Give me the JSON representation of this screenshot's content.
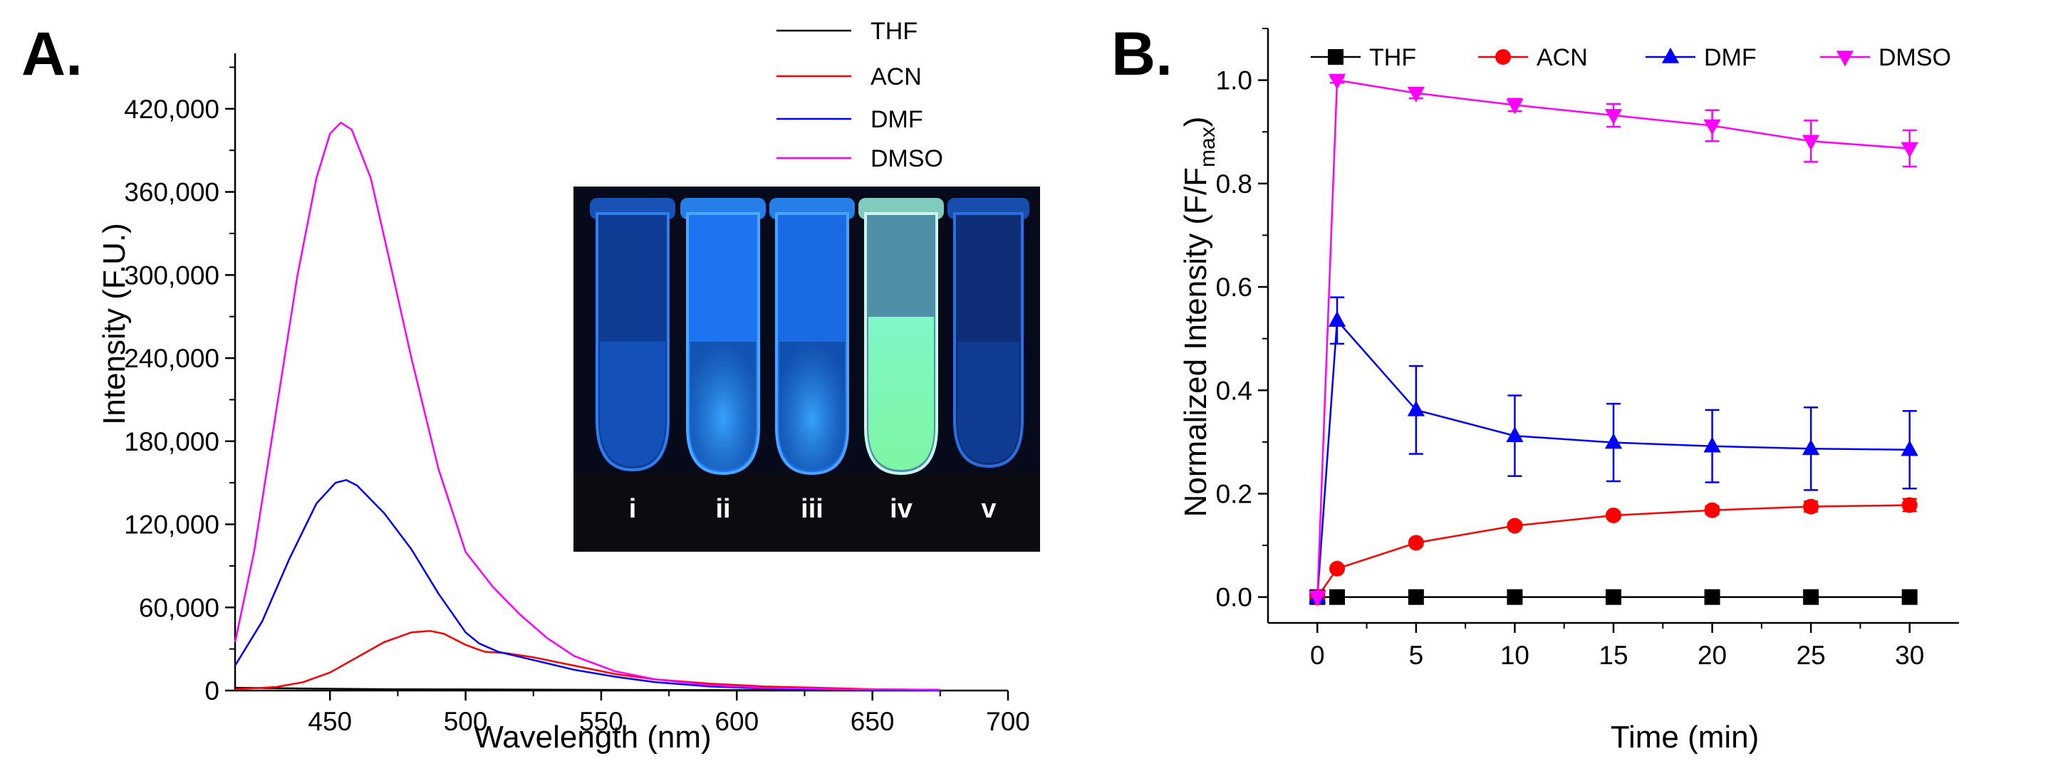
{
  "chart_data": [
    {
      "panel": "A.",
      "type": "line",
      "xlabel": "Wavelength (nm)",
      "ylabel": "Intensity (F.U.)",
      "xlim": [
        415,
        700
      ],
      "ylim": [
        0,
        460000
      ],
      "xticks": [
        450,
        500,
        550,
        600,
        650,
        700
      ],
      "xtick_labels": [
        "450",
        "500",
        "550",
        "600",
        "650",
        "700"
      ],
      "yticks": [
        0,
        60000,
        120000,
        180000,
        240000,
        300000,
        360000,
        420000
      ],
      "ytick_labels": [
        "0",
        "60,000",
        "120,000",
        "180,000",
        "240,000",
        "300,000",
        "360,000",
        "420,000"
      ],
      "legend_position": "top-right",
      "series": [
        {
          "name": "THF",
          "color": "#000000",
          "x": [
            415,
            440,
            470,
            500,
            550,
            600,
            675
          ],
          "y": [
            2000,
            1500,
            1000,
            800,
            500,
            300,
            200
          ]
        },
        {
          "name": "ACN",
          "color": "#ff0000",
          "x": [
            415,
            430,
            440,
            450,
            460,
            470,
            480,
            487,
            492,
            500,
            507,
            515,
            525,
            540,
            555,
            570,
            590,
            610,
            630,
            650,
            675
          ],
          "y": [
            1000,
            2500,
            6000,
            13000,
            24000,
            35000,
            42000,
            43000,
            41000,
            33000,
            28000,
            27000,
            24000,
            18000,
            12000,
            8000,
            5000,
            3000,
            2000,
            1000,
            500
          ]
        },
        {
          "name": "DMF",
          "color": "#0000ff",
          "x": [
            415,
            425,
            435,
            445,
            452,
            456,
            460,
            470,
            480,
            490,
            500,
            505,
            512,
            525,
            540,
            555,
            570,
            590,
            610,
            640,
            675
          ],
          "y": [
            18000,
            50000,
            95000,
            135000,
            150000,
            152000,
            148000,
            128000,
            102000,
            70000,
            42000,
            34000,
            28000,
            22000,
            15000,
            10000,
            6000,
            3000,
            1500,
            500,
            200
          ]
        },
        {
          "name": "DMSO",
          "color": "#ff00ff",
          "x": [
            415,
            422,
            430,
            438,
            445,
            450,
            454,
            458,
            465,
            472,
            480,
            490,
            500,
            510,
            520,
            530,
            540,
            555,
            570,
            590,
            610,
            640,
            675
          ],
          "y": [
            35000,
            100000,
            200000,
            300000,
            370000,
            402000,
            410000,
            405000,
            370000,
            310000,
            240000,
            160000,
            100000,
            75000,
            55000,
            38000,
            25000,
            14000,
            8000,
            4000,
            2000,
            1000,
            500
          ]
        }
      ],
      "inset_photo": {
        "description_labels": [
          "i",
          "ii",
          "iii",
          "iv",
          "v"
        ]
      }
    },
    {
      "panel": "B.",
      "type": "line",
      "xlabel": "Time (min)",
      "ylabel": "Normalized Intensity (F/F",
      "ylabel_subscript": "max",
      "ylabel_close": ")",
      "xlim": [
        -2.5,
        32.5
      ],
      "ylim": [
        -0.05,
        1.1
      ],
      "xticks": [
        0,
        5,
        10,
        15,
        20,
        25,
        30
      ],
      "xtick_labels": [
        "0",
        "5",
        "10",
        "15",
        "20",
        "25",
        "30"
      ],
      "yticks": [
        0.0,
        0.2,
        0.4,
        0.6,
        0.8,
        1.0
      ],
      "ytick_labels": [
        "0.0",
        "0.2",
        "0.4",
        "0.6",
        "0.8",
        "1.0"
      ],
      "legend_position": "top",
      "series": [
        {
          "name": "THF",
          "color": "#000000",
          "marker": "square",
          "x": [
            0,
            1,
            5,
            10,
            15,
            20,
            25,
            30
          ],
          "y": [
            0.0,
            0.0,
            0.0,
            0.0,
            0.0,
            0.0,
            0.0,
            0.0
          ],
          "err": [
            0,
            0,
            0,
            0,
            0,
            0,
            0,
            0
          ]
        },
        {
          "name": "ACN",
          "color": "#ff0000",
          "marker": "circle",
          "x": [
            0,
            1,
            5,
            10,
            15,
            20,
            25,
            30
          ],
          "y": [
            0.0,
            0.055,
            0.105,
            0.138,
            0.158,
            0.168,
            0.175,
            0.178
          ],
          "err": [
            0,
            0.005,
            0.006,
            0.006,
            0.006,
            0.008,
            0.01,
            0.012
          ]
        },
        {
          "name": "DMF",
          "color": "#0000ff",
          "marker": "triangle-up",
          "x": [
            0,
            1,
            5,
            10,
            15,
            20,
            25,
            30
          ],
          "y": [
            0.0,
            0.535,
            0.362,
            0.312,
            0.299,
            0.292,
            0.287,
            0.285
          ],
          "err": [
            0,
            0.045,
            0.085,
            0.078,
            0.075,
            0.07,
            0.08,
            0.075
          ]
        },
        {
          "name": "DMSO",
          "color": "#ff00ff",
          "marker": "triangle-down",
          "x": [
            0,
            1,
            5,
            10,
            15,
            20,
            25,
            30
          ],
          "y": [
            0.0,
            1.0,
            0.975,
            0.952,
            0.932,
            0.912,
            0.882,
            0.868
          ],
          "err": [
            0,
            0.005,
            0.01,
            0.012,
            0.022,
            0.03,
            0.04,
            0.035
          ]
        }
      ]
    }
  ]
}
